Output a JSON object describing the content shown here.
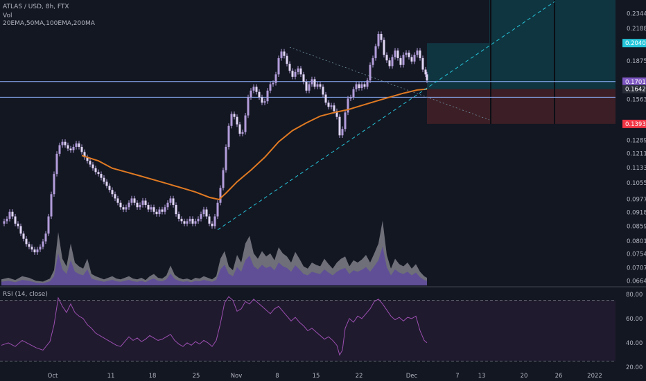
{
  "header": {
    "title": "ATLAS / USD, 8h, FTX",
    "vol_label": "Vol",
    "ma_label": "20EMA,50MA,100EMA,200MA",
    "rsi_label": "RSI (14, close)"
  },
  "colors": {
    "background": "#131722",
    "candle": "#b39ddb",
    "candle_down": "#e1d7f5",
    "volume_up": "#5e4a9c",
    "volume_down": "#8d8d95",
    "ema": "#e07a22",
    "hline": "#8fb3ff",
    "trend": "#26c6da",
    "rsi": "#9c4fb0",
    "profit_zone": "#0f3540",
    "loss_zone": "#3c1f26",
    "price_badge": "#7e57c2",
    "target_badge": "#26c6da",
    "stop_badge": "#f23645"
  },
  "chart_data": {
    "type": "candlestick",
    "title": "ATLAS / USD, 8h, FTX",
    "price_axis": {
      "ticks": [
        "0.2344",
        "0.2188",
        "0.1875",
        "0.1563",
        "0.1289",
        "0.1211",
        "0.1133",
        "0.1055",
        "0.0977",
        "0.0918",
        "0.0859",
        "0.0801",
        "0.0754",
        "0.0707",
        "0.0664"
      ],
      "scale": "log",
      "range": [
        0.065,
        0.25
      ]
    },
    "x_axis": {
      "ticks": [
        "Oct",
        "11",
        "18",
        "25",
        "Nov",
        "8",
        "15",
        "22",
        "Dec",
        "7",
        "13",
        "20",
        "26",
        "2022"
      ]
    },
    "price_badges": [
      {
        "value": "0.2040",
        "role": "target"
      },
      {
        "value": "0.1701",
        "role": "last"
      },
      {
        "value": "0.1642",
        "role": "ema"
      },
      {
        "value": "0.1393",
        "role": "stop"
      }
    ],
    "key_levels": [
      0.1701,
      0.158
    ],
    "position": {
      "entry": 0.1642,
      "target": 0.204,
      "stop": 0.1393
    },
    "close_path": [
      [
        0,
        0.087
      ],
      [
        4,
        0.088
      ],
      [
        8,
        0.089
      ],
      [
        12,
        0.092
      ],
      [
        16,
        0.09
      ],
      [
        20,
        0.087
      ],
      [
        24,
        0.086
      ],
      [
        28,
        0.083
      ],
      [
        32,
        0.081
      ],
      [
        36,
        0.079
      ],
      [
        40,
        0.078
      ],
      [
        44,
        0.077
      ],
      [
        48,
        0.076
      ],
      [
        52,
        0.077
      ],
      [
        56,
        0.078
      ],
      [
        60,
        0.08
      ],
      [
        64,
        0.083
      ],
      [
        68,
        0.09
      ],
      [
        72,
        0.1
      ],
      [
        76,
        0.11
      ],
      [
        80,
        0.121
      ],
      [
        84,
        0.126
      ],
      [
        88,
        0.128
      ],
      [
        92,
        0.126
      ],
      [
        96,
        0.124
      ],
      [
        100,
        0.123
      ],
      [
        104,
        0.125
      ],
      [
        108,
        0.127
      ],
      [
        112,
        0.125
      ],
      [
        116,
        0.122
      ],
      [
        120,
        0.119
      ],
      [
        124,
        0.117
      ],
      [
        128,
        0.115
      ],
      [
        132,
        0.113
      ],
      [
        136,
        0.111
      ],
      [
        140,
        0.11
      ],
      [
        144,
        0.108
      ],
      [
        148,
        0.106
      ],
      [
        152,
        0.104
      ],
      [
        156,
        0.102
      ],
      [
        160,
        0.1
      ],
      [
        164,
        0.098
      ],
      [
        168,
        0.096
      ],
      [
        172,
        0.094
      ],
      [
        176,
        0.093
      ],
      [
        180,
        0.094
      ],
      [
        184,
        0.096
      ],
      [
        188,
        0.098
      ],
      [
        192,
        0.096
      ],
      [
        196,
        0.094
      ],
      [
        200,
        0.095
      ],
      [
        204,
        0.097
      ],
      [
        208,
        0.095
      ],
      [
        212,
        0.093
      ],
      [
        216,
        0.094
      ],
      [
        220,
        0.092
      ],
      [
        224,
        0.091
      ],
      [
        228,
        0.093
      ],
      [
        232,
        0.092
      ],
      [
        236,
        0.094
      ],
      [
        240,
        0.096
      ],
      [
        244,
        0.098
      ],
      [
        248,
        0.095
      ],
      [
        252,
        0.091
      ],
      [
        256,
        0.089
      ],
      [
        260,
        0.088
      ],
      [
        264,
        0.087
      ],
      [
        268,
        0.088
      ],
      [
        272,
        0.089
      ],
      [
        276,
        0.087
      ],
      [
        280,
        0.088
      ],
      [
        284,
        0.089
      ],
      [
        288,
        0.091
      ],
      [
        292,
        0.093
      ],
      [
        296,
        0.09
      ],
      [
        300,
        0.087
      ],
      [
        304,
        0.086
      ],
      [
        308,
        0.09
      ],
      [
        312,
        0.096
      ],
      [
        316,
        0.103
      ],
      [
        320,
        0.112
      ],
      [
        324,
        0.125
      ],
      [
        328,
        0.138
      ],
      [
        332,
        0.146
      ],
      [
        336,
        0.144
      ],
      [
        340,
        0.139
      ],
      [
        344,
        0.133
      ],
      [
        348,
        0.134
      ],
      [
        352,
        0.145
      ],
      [
        356,
        0.158
      ],
      [
        360,
        0.163
      ],
      [
        364,
        0.166
      ],
      [
        368,
        0.162
      ],
      [
        372,
        0.158
      ],
      [
        376,
        0.154
      ],
      [
        380,
        0.155
      ],
      [
        384,
        0.163
      ],
      [
        388,
        0.168
      ],
      [
        392,
        0.169
      ],
      [
        396,
        0.176
      ],
      [
        400,
        0.19
      ],
      [
        404,
        0.196
      ],
      [
        408,
        0.192
      ],
      [
        412,
        0.185
      ],
      [
        416,
        0.179
      ],
      [
        420,
        0.174
      ],
      [
        424,
        0.178
      ],
      [
        428,
        0.181
      ],
      [
        432,
        0.176
      ],
      [
        436,
        0.17
      ],
      [
        440,
        0.163
      ],
      [
        444,
        0.168
      ],
      [
        448,
        0.172
      ],
      [
        452,
        0.166
      ],
      [
        456,
        0.168
      ],
      [
        460,
        0.166
      ],
      [
        464,
        0.16
      ],
      [
        468,
        0.154
      ],
      [
        472,
        0.151
      ],
      [
        476,
        0.152
      ],
      [
        480,
        0.148
      ],
      [
        484,
        0.144
      ],
      [
        488,
        0.132
      ],
      [
        492,
        0.136
      ],
      [
        496,
        0.147
      ],
      [
        500,
        0.157
      ],
      [
        504,
        0.158
      ],
      [
        508,
        0.164
      ],
      [
        512,
        0.168
      ],
      [
        516,
        0.165
      ],
      [
        520,
        0.168
      ],
      [
        524,
        0.166
      ],
      [
        528,
        0.171
      ],
      [
        532,
        0.184
      ],
      [
        536,
        0.19
      ],
      [
        540,
        0.201
      ],
      [
        544,
        0.213
      ],
      [
        548,
        0.207
      ],
      [
        552,
        0.193
      ],
      [
        556,
        0.188
      ],
      [
        560,
        0.183
      ],
      [
        564,
        0.191
      ],
      [
        568,
        0.197
      ],
      [
        572,
        0.19
      ],
      [
        576,
        0.184
      ],
      [
        580,
        0.193
      ],
      [
        584,
        0.195
      ],
      [
        588,
        0.191
      ],
      [
        592,
        0.187
      ],
      [
        596,
        0.193
      ],
      [
        600,
        0.197
      ],
      [
        604,
        0.19
      ],
      [
        608,
        0.18
      ],
      [
        612,
        0.176
      ],
      [
        614,
        0.171
      ]
    ],
    "ema_path": [
      [
        116,
        0.12
      ],
      [
        140,
        0.117
      ],
      [
        160,
        0.113
      ],
      [
        180,
        0.111
      ],
      [
        200,
        0.109
      ],
      [
        220,
        0.107
      ],
      [
        240,
        0.105
      ],
      [
        260,
        0.103
      ],
      [
        280,
        0.101
      ],
      [
        300,
        0.0985
      ],
      [
        314,
        0.0975
      ],
      [
        324,
        0.1005
      ],
      [
        340,
        0.106
      ],
      [
        360,
        0.112
      ],
      [
        380,
        0.119
      ],
      [
        400,
        0.128
      ],
      [
        420,
        0.135
      ],
      [
        440,
        0.14
      ],
      [
        460,
        0.1445
      ],
      [
        480,
        0.147
      ],
      [
        500,
        0.149
      ],
      [
        520,
        0.152
      ],
      [
        540,
        0.155
      ],
      [
        560,
        0.158
      ],
      [
        580,
        0.161
      ],
      [
        600,
        0.1635
      ],
      [
        614,
        0.1642
      ]
    ],
    "rsi": {
      "ticks": [
        "80.00",
        "60.00",
        "40.00",
        "20.00"
      ],
      "range": [
        20,
        80
      ],
      "path": [
        [
          0,
          38
        ],
        [
          10,
          40
        ],
        [
          20,
          37
        ],
        [
          30,
          42
        ],
        [
          40,
          39
        ],
        [
          50,
          36
        ],
        [
          60,
          34
        ],
        [
          70,
          41
        ],
        [
          76,
          55
        ],
        [
          82,
          77
        ],
        [
          88,
          70
        ],
        [
          94,
          65
        ],
        [
          100,
          72
        ],
        [
          106,
          65
        ],
        [
          112,
          62
        ],
        [
          118,
          60
        ],
        [
          124,
          55
        ],
        [
          130,
          52
        ],
        [
          136,
          48
        ],
        [
          142,
          46
        ],
        [
          148,
          44
        ],
        [
          154,
          42
        ],
        [
          160,
          40
        ],
        [
          166,
          38
        ],
        [
          172,
          37
        ],
        [
          178,
          41
        ],
        [
          184,
          45
        ],
        [
          190,
          42
        ],
        [
          196,
          44
        ],
        [
          202,
          41
        ],
        [
          208,
          43
        ],
        [
          214,
          46
        ],
        [
          220,
          44
        ],
        [
          226,
          42
        ],
        [
          232,
          43
        ],
        [
          238,
          45
        ],
        [
          244,
          47
        ],
        [
          250,
          42
        ],
        [
          256,
          39
        ],
        [
          262,
          37
        ],
        [
          268,
          40
        ],
        [
          274,
          38
        ],
        [
          280,
          41
        ],
        [
          286,
          39
        ],
        [
          292,
          42
        ],
        [
          298,
          40
        ],
        [
          304,
          37
        ],
        [
          310,
          42
        ],
        [
          316,
          56
        ],
        [
          322,
          73
        ],
        [
          328,
          78
        ],
        [
          334,
          75
        ],
        [
          340,
          66
        ],
        [
          346,
          68
        ],
        [
          352,
          74
        ],
        [
          358,
          72
        ],
        [
          364,
          76
        ],
        [
          370,
          73
        ],
        [
          376,
          70
        ],
        [
          382,
          67
        ],
        [
          388,
          64
        ],
        [
          394,
          68
        ],
        [
          400,
          70
        ],
        [
          406,
          66
        ],
        [
          412,
          62
        ],
        [
          418,
          58
        ],
        [
          424,
          61
        ],
        [
          430,
          57
        ],
        [
          436,
          54
        ],
        [
          442,
          50
        ],
        [
          448,
          52
        ],
        [
          454,
          49
        ],
        [
          460,
          46
        ],
        [
          466,
          43
        ],
        [
          472,
          45
        ],
        [
          478,
          42
        ],
        [
          484,
          38
        ],
        [
          488,
          30
        ],
        [
          492,
          34
        ],
        [
          496,
          52
        ],
        [
          502,
          60
        ],
        [
          508,
          57
        ],
        [
          514,
          62
        ],
        [
          520,
          60
        ],
        [
          526,
          64
        ],
        [
          532,
          68
        ],
        [
          538,
          74
        ],
        [
          544,
          76
        ],
        [
          550,
          72
        ],
        [
          556,
          67
        ],
        [
          562,
          62
        ],
        [
          568,
          59
        ],
        [
          574,
          61
        ],
        [
          580,
          58
        ],
        [
          586,
          61
        ],
        [
          592,
          60
        ],
        [
          598,
          62
        ],
        [
          604,
          50
        ],
        [
          610,
          42
        ],
        [
          614,
          40
        ]
      ]
    },
    "volume": {
      "path": [
        [
          0,
          0.08
        ],
        [
          10,
          0.1
        ],
        [
          20,
          0.07
        ],
        [
          30,
          0.12
        ],
        [
          40,
          0.1
        ],
        [
          50,
          0.06
        ],
        [
          60,
          0.05
        ],
        [
          70,
          0.09
        ],
        [
          76,
          0.2
        ],
        [
          82,
          0.7
        ],
        [
          88,
          0.35
        ],
        [
          94,
          0.25
        ],
        [
          100,
          0.55
        ],
        [
          106,
          0.3
        ],
        [
          112,
          0.25
        ],
        [
          118,
          0.22
        ],
        [
          124,
          0.35
        ],
        [
          130,
          0.15
        ],
        [
          136,
          0.12
        ],
        [
          142,
          0.1
        ],
        [
          148,
          0.08
        ],
        [
          154,
          0.1
        ],
        [
          160,
          0.12
        ],
        [
          166,
          0.09
        ],
        [
          172,
          0.08
        ],
        [
          178,
          0.1
        ],
        [
          184,
          0.12
        ],
        [
          190,
          0.09
        ],
        [
          196,
          0.08
        ],
        [
          202,
          0.1
        ],
        [
          208,
          0.07
        ],
        [
          214,
          0.12
        ],
        [
          220,
          0.15
        ],
        [
          226,
          0.1
        ],
        [
          232,
          0.09
        ],
        [
          238,
          0.13
        ],
        [
          244,
          0.26
        ],
        [
          250,
          0.14
        ],
        [
          256,
          0.1
        ],
        [
          262,
          0.08
        ],
        [
          268,
          0.09
        ],
        [
          274,
          0.07
        ],
        [
          280,
          0.1
        ],
        [
          286,
          0.09
        ],
        [
          292,
          0.12
        ],
        [
          298,
          0.1
        ],
        [
          304,
          0.08
        ],
        [
          310,
          0.12
        ],
        [
          316,
          0.35
        ],
        [
          322,
          0.45
        ],
        [
          328,
          0.25
        ],
        [
          334,
          0.2
        ],
        [
          340,
          0.4
        ],
        [
          346,
          0.3
        ],
        [
          352,
          0.55
        ],
        [
          358,
          0.65
        ],
        [
          364,
          0.42
        ],
        [
          370,
          0.35
        ],
        [
          376,
          0.45
        ],
        [
          382,
          0.38
        ],
        [
          388,
          0.42
        ],
        [
          394,
          0.33
        ],
        [
          400,
          0.5
        ],
        [
          406,
          0.42
        ],
        [
          412,
          0.38
        ],
        [
          418,
          0.3
        ],
        [
          424,
          0.44
        ],
        [
          430,
          0.35
        ],
        [
          436,
          0.25
        ],
        [
          442,
          0.22
        ],
        [
          448,
          0.3
        ],
        [
          454,
          0.27
        ],
        [
          460,
          0.25
        ],
        [
          466,
          0.35
        ],
        [
          472,
          0.28
        ],
        [
          478,
          0.22
        ],
        [
          484,
          0.3
        ],
        [
          490,
          0.35
        ],
        [
          496,
          0.38
        ],
        [
          502,
          0.25
        ],
        [
          508,
          0.33
        ],
        [
          514,
          0.3
        ],
        [
          520,
          0.34
        ],
        [
          526,
          0.4
        ],
        [
          532,
          0.3
        ],
        [
          538,
          0.42
        ],
        [
          544,
          0.55
        ],
        [
          550,
          0.85
        ],
        [
          556,
          0.4
        ],
        [
          562,
          0.22
        ],
        [
          568,
          0.35
        ],
        [
          574,
          0.28
        ],
        [
          580,
          0.25
        ],
        [
          586,
          0.3
        ],
        [
          592,
          0.22
        ],
        [
          598,
          0.28
        ],
        [
          604,
          0.18
        ],
        [
          610,
          0.12
        ],
        [
          614,
          0.1
        ]
      ]
    }
  }
}
